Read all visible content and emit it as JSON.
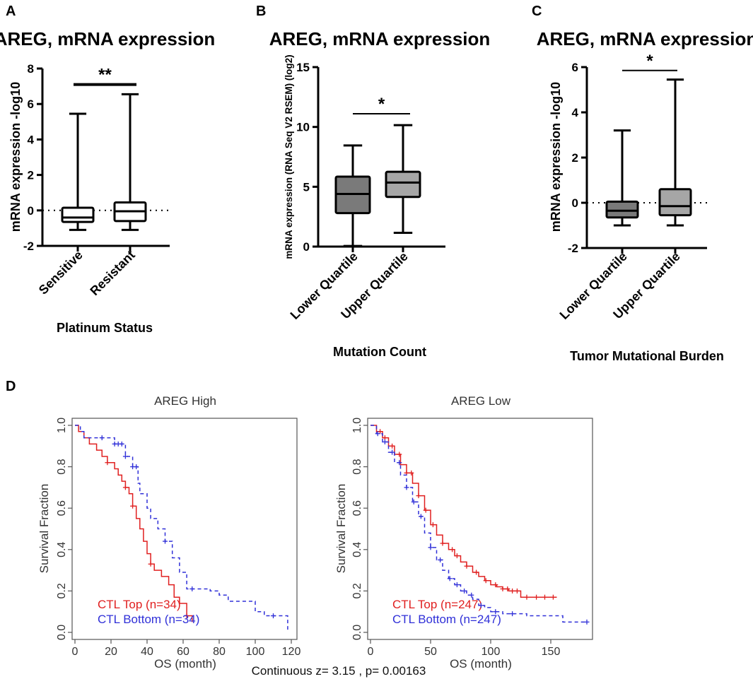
{
  "panel_labels": [
    "A",
    "B",
    "C",
    "D"
  ],
  "chart_data": [
    {
      "type": "box",
      "panel": "A",
      "title": "AREG, mRNA expression",
      "ylabel": "mRNA expression -log10",
      "xlabel": "Platinum Status",
      "ylim": [
        -2,
        8
      ],
      "yticks": [
        -2,
        0,
        2,
        4,
        6,
        8
      ],
      "reference_line": 0,
      "categories": [
        "Sensitive",
        "Resistant"
      ],
      "boxes": [
        {
          "min": -1.1,
          "q1": -0.65,
          "median": -0.4,
          "q3": 0.15,
          "max": 5.45
        },
        {
          "min": -1.1,
          "q1": -0.6,
          "median": -0.05,
          "q3": 0.45,
          "max": 6.55
        }
      ],
      "significance": "**",
      "significance_y": 7.1
    },
    {
      "type": "box",
      "panel": "B",
      "title": "AREG, mRNA expression",
      "ylabel": "mRNA expression (RNA Seq V2 RSEM) (log2)",
      "xlabel": "Mutation Count",
      "ylim": [
        0,
        15
      ],
      "yticks": [
        0,
        5,
        10,
        15
      ],
      "categories": [
        "Lower Quartile",
        "Upper Quartile"
      ],
      "boxes": [
        {
          "min": 0.05,
          "q1": 2.8,
          "median": 4.4,
          "q3": 5.85,
          "max": 8.45
        },
        {
          "min": 1.15,
          "q1": 4.15,
          "median": 5.35,
          "q3": 6.25,
          "max": 10.15
        }
      ],
      "significance": "*",
      "significance_y": 11.1
    },
    {
      "type": "box",
      "panel": "C",
      "title": "AREG, mRNA expression",
      "ylabel": "mRNA expression -log10",
      "xlabel": "Tumor Mutational Burden",
      "ylim": [
        -2,
        6
      ],
      "yticks": [
        -2,
        0,
        2,
        4,
        6
      ],
      "reference_line": 0,
      "categories": [
        "Lower Quartile",
        "Upper Quartile"
      ],
      "boxes": [
        {
          "min": -1.0,
          "q1": -0.65,
          "median": -0.35,
          "q3": 0.05,
          "max": 3.2
        },
        {
          "min": -1.0,
          "q1": -0.55,
          "median": -0.15,
          "q3": 0.6,
          "max": 5.45
        }
      ],
      "significance": "*",
      "significance_y": 5.85
    },
    {
      "type": "line",
      "subtype": "kaplan-meier",
      "panel": "D",
      "title": "AREG High",
      "xlabel": "OS (month)",
      "ylabel": "Survival Fraction",
      "xlim": [
        0,
        120
      ],
      "ylim": [
        0,
        1
      ],
      "xticks": [
        0,
        20,
        40,
        60,
        80,
        100,
        120
      ],
      "yticks": [
        "0.0",
        "0.2",
        "0.4",
        "0.6",
        "0.8",
        "1.0"
      ],
      "legend": [
        "CTL Top (n=34)",
        "CTL Bottom (n=34)"
      ],
      "series": [
        {
          "name": "CTL Top (n=34)",
          "color": "#e02020",
          "dash": false,
          "x": [
            0,
            2,
            5,
            8,
            12,
            15,
            18,
            22,
            24,
            26,
            28,
            30,
            32,
            34,
            36,
            38,
            40,
            42,
            44,
            48,
            52,
            55,
            58,
            62,
            65
          ],
          "y": [
            1.0,
            0.97,
            0.94,
            0.91,
            0.88,
            0.85,
            0.82,
            0.79,
            0.76,
            0.73,
            0.7,
            0.67,
            0.61,
            0.55,
            0.5,
            0.44,
            0.38,
            0.33,
            0.3,
            0.27,
            0.23,
            0.17,
            0.14,
            0.08,
            0.05
          ],
          "censors_x": [
            18,
            28,
            32,
            42,
            62
          ]
        },
        {
          "name": "CTL Bottom (n=34)",
          "color": "#3030d8",
          "dash": true,
          "x": [
            0,
            3,
            5,
            12,
            22,
            28,
            32,
            35,
            36,
            40,
            42,
            46,
            50,
            54,
            58,
            62,
            67,
            70,
            75,
            80,
            85,
            90,
            95,
            100,
            105,
            118
          ],
          "y": [
            1.0,
            0.97,
            0.94,
            0.94,
            0.91,
            0.85,
            0.8,
            0.72,
            0.67,
            0.6,
            0.55,
            0.5,
            0.44,
            0.36,
            0.29,
            0.21,
            0.21,
            0.21,
            0.2,
            0.18,
            0.15,
            0.15,
            0.15,
            0.1,
            0.08,
            0.01
          ],
          "censors_x": [
            15,
            22,
            24,
            26,
            28,
            32,
            34,
            50,
            65,
            110
          ]
        }
      ]
    },
    {
      "type": "line",
      "subtype": "kaplan-meier",
      "panel": "D",
      "title": "AREG Low",
      "xlabel": "OS (month)",
      "ylabel": "Survival Fraction",
      "xlim": [
        0,
        180
      ],
      "ylim": [
        0,
        1
      ],
      "xticks": [
        0,
        50,
        100,
        150
      ],
      "yticks": [
        "0.0",
        "0.2",
        "0.4",
        "0.6",
        "0.8",
        "1.0"
      ],
      "legend": [
        "CTL Top (n=247)",
        "CTL Bottom (n=247)"
      ],
      "series": [
        {
          "name": "CTL Top (n=247)",
          "color": "#e02020",
          "dash": false,
          "x": [
            0,
            5,
            10,
            15,
            20,
            25,
            30,
            35,
            40,
            45,
            50,
            55,
            60,
            65,
            70,
            75,
            80,
            85,
            90,
            95,
            100,
            105,
            110,
            115,
            120,
            125,
            130,
            140,
            150,
            155
          ],
          "y": [
            1.0,
            0.97,
            0.94,
            0.9,
            0.86,
            0.81,
            0.77,
            0.72,
            0.66,
            0.59,
            0.52,
            0.47,
            0.43,
            0.4,
            0.37,
            0.34,
            0.32,
            0.29,
            0.27,
            0.25,
            0.23,
            0.22,
            0.21,
            0.2,
            0.2,
            0.17,
            0.17,
            0.17,
            0.17,
            0.17
          ],
          "censors_x": [
            8,
            12,
            18,
            24,
            30,
            34,
            40,
            46,
            52,
            60,
            68,
            72,
            80,
            88,
            96,
            104,
            110,
            114,
            118,
            122,
            130,
            138,
            145,
            152
          ]
        },
        {
          "name": "CTL Bottom (n=247)",
          "color": "#3030d8",
          "dash": true,
          "x": [
            0,
            5,
            10,
            15,
            20,
            25,
            30,
            35,
            40,
            45,
            50,
            55,
            60,
            65,
            70,
            75,
            80,
            85,
            90,
            95,
            100,
            110,
            120,
            130,
            140,
            150,
            160,
            170,
            180
          ],
          "y": [
            1.0,
            0.96,
            0.92,
            0.87,
            0.82,
            0.76,
            0.7,
            0.63,
            0.56,
            0.48,
            0.41,
            0.35,
            0.3,
            0.26,
            0.23,
            0.2,
            0.18,
            0.16,
            0.13,
            0.12,
            0.1,
            0.09,
            0.09,
            0.08,
            0.08,
            0.08,
            0.05,
            0.05,
            0.05
          ],
          "censors_x": [
            6,
            12,
            18,
            24,
            30,
            36,
            42,
            50,
            58,
            66,
            72,
            78,
            84,
            92,
            104,
            118,
            180
          ]
        }
      ]
    }
  ],
  "footer": "Continuous z= 3.15 , p= 0.00163"
}
